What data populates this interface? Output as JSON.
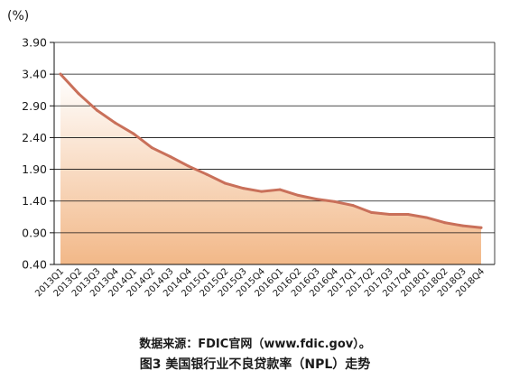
{
  "chart_data": {
    "type": "area",
    "unit_label": "(%)",
    "y_ticks": [
      "3.90",
      "3.40",
      "2.90",
      "2.40",
      "1.90",
      "1.40",
      "0.90",
      "0.40"
    ],
    "ylim": [
      0.4,
      3.9
    ],
    "grid": "horizontal",
    "categories": [
      "2013Q1",
      "2013Q2",
      "2013Q3",
      "2013Q4",
      "2014Q1",
      "2014Q2",
      "2014Q3",
      "2014Q4",
      "2015Q1",
      "2015Q2",
      "2015Q3",
      "2015Q4",
      "2016Q1",
      "2016Q2",
      "2016Q3",
      "2016Q4",
      "2017Q1",
      "2017Q2",
      "2017Q3",
      "2017Q4",
      "2018Q1",
      "2018Q2",
      "2018Q3",
      "2018Q4"
    ],
    "values": [
      3.4,
      3.09,
      2.83,
      2.63,
      2.46,
      2.24,
      2.1,
      1.95,
      1.82,
      1.68,
      1.6,
      1.55,
      1.58,
      1.49,
      1.43,
      1.39,
      1.33,
      1.22,
      1.19,
      1.19,
      1.14,
      1.06,
      1.01,
      0.98
    ],
    "source": "数据来源：FDIC官网（www.fdic.gov）。",
    "caption": "图3  美国银行业不良贷款率（NPL）走势"
  },
  "colors": {
    "line": "#c9705a",
    "area_top": "#ffffff",
    "area_bottom": "#f2b888",
    "grid": "#111111",
    "axis": "#111111"
  }
}
